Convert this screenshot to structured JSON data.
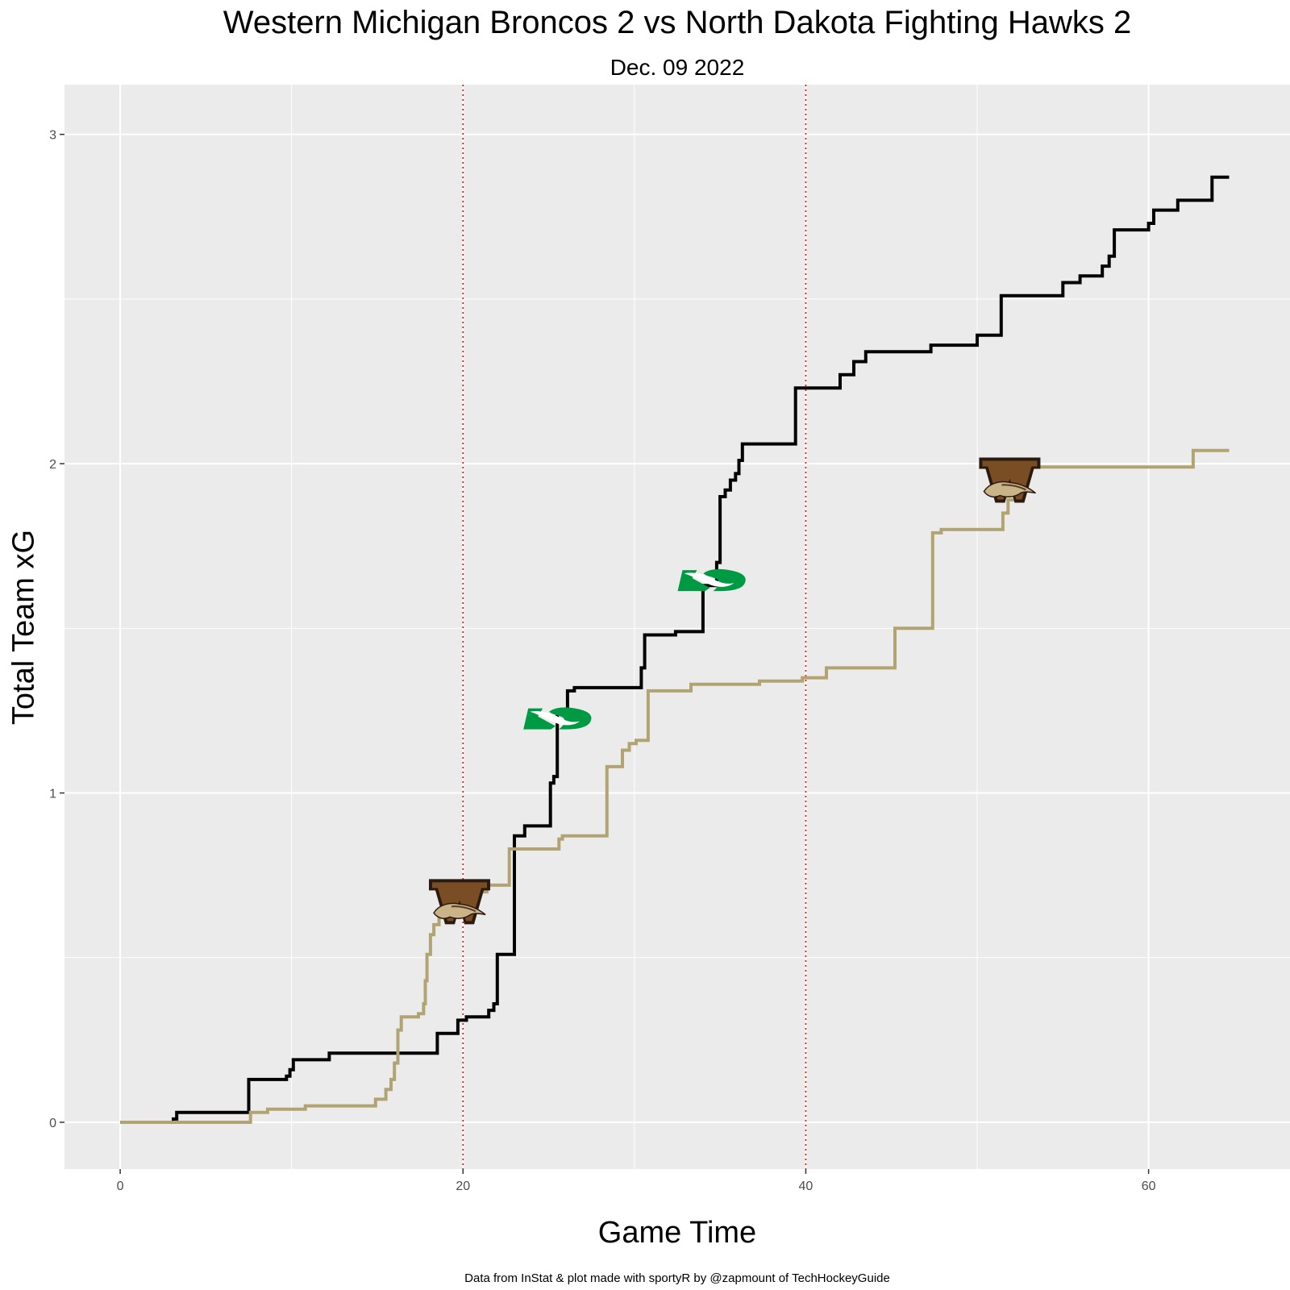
{
  "chart_data": {
    "type": "line",
    "title": "Western Michigan Broncos 2 vs North Dakota Fighting Hawks 2",
    "subtitle": "Dec. 09 2022",
    "xlabel": "Game Time",
    "ylabel": "Total Team xG",
    "caption": "Data from InStat & plot made with sportyR by @zapmount of TechHockeyGuide",
    "xlim": [
      -3.25,
      68.25
    ],
    "ylim": [
      -0.142,
      3.151
    ],
    "x_ticks": [
      0,
      20,
      40,
      60
    ],
    "x_tick_labels": [
      "0",
      "20",
      "40",
      "60"
    ],
    "y_ticks": [
      0,
      1,
      2,
      3
    ],
    "y_tick_labels": [
      "0",
      "1",
      "2",
      "3"
    ],
    "period_lines": [
      20,
      40
    ],
    "grid": true,
    "legend": "none",
    "series": [
      {
        "team": "North Dakota Fighting Hawks",
        "color": "#000000",
        "logo": "north-dakota-logo",
        "steps": [
          [
            0,
            0
          ],
          [
            3.1,
            0.01
          ],
          [
            3.3,
            0.03
          ],
          [
            7.5,
            0.13
          ],
          [
            9.7,
            0.14
          ],
          [
            9.9,
            0.16
          ],
          [
            10.1,
            0.19
          ],
          [
            12.2,
            0.21
          ],
          [
            18.5,
            0.27
          ],
          [
            19.7,
            0.31
          ],
          [
            20.2,
            0.32
          ],
          [
            21.5,
            0.34
          ],
          [
            21.8,
            0.36
          ],
          [
            22.0,
            0.51
          ],
          [
            23.0,
            0.87
          ],
          [
            23.6,
            0.9
          ],
          [
            25.1,
            1.03
          ],
          [
            25.3,
            1.05
          ],
          [
            25.5,
            1.25
          ],
          [
            26.1,
            1.31
          ],
          [
            26.5,
            1.32
          ],
          [
            30.4,
            1.38
          ],
          [
            30.6,
            1.48
          ],
          [
            32.4,
            1.49
          ],
          [
            34.0,
            1.63
          ],
          [
            34.8,
            1.7
          ],
          [
            35.0,
            1.9
          ],
          [
            35.3,
            1.92
          ],
          [
            35.6,
            1.95
          ],
          [
            35.9,
            1.97
          ],
          [
            36.1,
            2.01
          ],
          [
            36.3,
            2.06
          ],
          [
            39.4,
            2.23
          ],
          [
            42.0,
            2.27
          ],
          [
            42.8,
            2.31
          ],
          [
            43.5,
            2.34
          ],
          [
            47.3,
            2.36
          ],
          [
            50.0,
            2.39
          ],
          [
            51.4,
            2.51
          ],
          [
            55.0,
            2.55
          ],
          [
            56.0,
            2.57
          ],
          [
            57.3,
            2.6
          ],
          [
            57.7,
            2.63
          ],
          [
            58.0,
            2.71
          ],
          [
            60.0,
            2.73
          ],
          [
            60.3,
            2.77
          ],
          [
            61.7,
            2.8
          ],
          [
            63.7,
            2.87
          ],
          [
            64.7,
            2.87
          ]
        ]
      },
      {
        "team": "Western Michigan Broncos",
        "color": "#b2a472",
        "logo": "western-michigan-logo",
        "steps": [
          [
            0,
            0
          ],
          [
            7.6,
            0.03
          ],
          [
            8.6,
            0.04
          ],
          [
            10.8,
            0.05
          ],
          [
            14.9,
            0.07
          ],
          [
            15.5,
            0.1
          ],
          [
            15.8,
            0.13
          ],
          [
            16.0,
            0.18
          ],
          [
            16.2,
            0.28
          ],
          [
            16.4,
            0.32
          ],
          [
            17.4,
            0.33
          ],
          [
            17.7,
            0.36
          ],
          [
            17.8,
            0.43
          ],
          [
            17.9,
            0.51
          ],
          [
            18.1,
            0.57
          ],
          [
            18.3,
            0.6
          ],
          [
            18.6,
            0.63
          ],
          [
            19.7,
            0.67
          ],
          [
            20.2,
            0.68
          ],
          [
            20.8,
            0.7
          ],
          [
            21.4,
            0.72
          ],
          [
            22.7,
            0.83
          ],
          [
            25.6,
            0.86
          ],
          [
            25.8,
            0.87
          ],
          [
            28.4,
            1.08
          ],
          [
            29.3,
            1.13
          ],
          [
            29.7,
            1.15
          ],
          [
            30.1,
            1.16
          ],
          [
            30.8,
            1.31
          ],
          [
            33.3,
            1.33
          ],
          [
            37.3,
            1.34
          ],
          [
            39.8,
            1.35
          ],
          [
            41.2,
            1.38
          ],
          [
            45.2,
            1.5
          ],
          [
            47.4,
            1.79
          ],
          [
            47.9,
            1.8
          ],
          [
            51.5,
            1.85
          ],
          [
            51.8,
            1.89
          ],
          [
            52.2,
            1.98
          ],
          [
            53.0,
            1.99
          ],
          [
            62.6,
            2.04
          ],
          [
            64.7,
            2.04
          ]
        ]
      }
    ],
    "logos": [
      {
        "team": "Western Michigan Broncos",
        "logo": "western-michigan-logo",
        "x": 19.8,
        "y": 0.67
      },
      {
        "team": "North Dakota Fighting Hawks",
        "logo": "north-dakota-logo",
        "x": 25.5,
        "y": 1.23
      },
      {
        "team": "North Dakota Fighting Hawks",
        "logo": "north-dakota-logo",
        "x": 34.5,
        "y": 1.65
      },
      {
        "team": "Western Michigan Broncos",
        "logo": "western-michigan-logo",
        "x": 51.9,
        "y": 1.95
      }
    ]
  }
}
